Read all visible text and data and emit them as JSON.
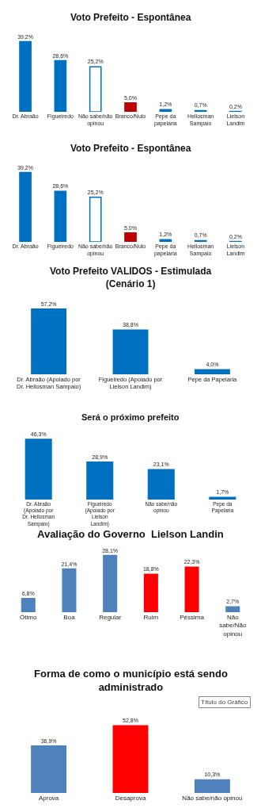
{
  "chart_data": [
    {
      "type": "bar",
      "title": "Voto Prefeito - Espontânea",
      "categories": [
        "Dr. Abraão",
        "Figueiredo",
        "Não sabe/não opinou",
        "Branco/Nulo",
        "Pepe da papelaria",
        "Hellosman Sampaio",
        "Lielson Landim"
      ],
      "values": [
        39.2,
        28.6,
        25.2,
        5.0,
        1.2,
        0.7,
        0.2
      ],
      "value_labels": [
        "39,2%",
        "28,6%",
        "25,2%",
        "5,0%",
        "1,2%",
        "0,7%",
        "0,2%"
      ],
      "colors": [
        "#0070c0",
        "#0070c0",
        "#ffffff",
        "#c00000",
        "#0070c0",
        "#0070c0",
        "#0070c0"
      ]
    },
    {
      "type": "bar",
      "title": "Voto Prefeito - Espontânea",
      "categories": [
        "Dr. Abraão",
        "Figueiredo",
        "Não sabe/não opinou",
        "Branco/Nulo",
        "Pepe da papelaria",
        "Hellosman Sampaio",
        "Lielson Landim"
      ],
      "values": [
        39.2,
        28.6,
        25.2,
        5.0,
        1.2,
        0.7,
        0.2
      ],
      "value_labels": [
        "39,2%",
        "28,6%",
        "25,2%",
        "5,0%",
        "1,2%",
        "0,7%",
        "0,2%"
      ],
      "colors": [
        "#0070c0",
        "#0070c0",
        "#ffffff",
        "#c00000",
        "#0070c0",
        "#0070c0",
        "#0070c0"
      ]
    },
    {
      "type": "bar",
      "title": "Voto Prefeito VALIDOS - Estimulada (Cenário 1)",
      "categories": [
        "Dr. Abraão (Apoiado por Dr. Hellosman Sampaio)",
        "Figueiredo (Apoiado por Lielson Landim)",
        "Pepe da Papelaria"
      ],
      "values": [
        57.2,
        38.8,
        4.0
      ],
      "value_labels": [
        "57,2%",
        "38,8%",
        "4,0%"
      ],
      "color": "#0070c0"
    },
    {
      "type": "bar",
      "title": "Será o próximo prefeito",
      "categories": [
        "Dr. Abraão (Apoiado por Dr. Hellosman Sampaio)",
        "Figueiredo (Apoiado por Lielson Landim)",
        "Não sabe/não opinou",
        "Pepe da Papelaria"
      ],
      "values": [
        46.3,
        28.9,
        23.1,
        1.7
      ],
      "value_labels": [
        "46,3%",
        "28,9%",
        "23,1%",
        "1,7%"
      ],
      "color": "#0070c0"
    },
    {
      "type": "bar",
      "title": "Avaliação do Governo  Lielson Landin",
      "categories": [
        "Ótimo",
        "Boa",
        "Regular",
        "Ruim",
        "Péssima",
        "Não sabe/Não opinou"
      ],
      "values": [
        6.8,
        21.4,
        28.1,
        18.8,
        22.3,
        2.7
      ],
      "value_labels": [
        "6,8%",
        "21,4%",
        "28,1%",
        "18,8%",
        "22,3%",
        "2,7%"
      ],
      "colors": [
        "#4f81bd",
        "#4f81bd",
        "#4f81bd",
        "#ff0000",
        "#ff0000",
        "#4f81bd"
      ]
    },
    {
      "type": "bar",
      "title": "Forma de como o município está sendo administrado",
      "categories": [
        "Aprova",
        "Desaprova",
        "Não sabe/não opinou"
      ],
      "values": [
        36.9,
        52.8,
        10.3
      ],
      "value_labels": [
        "36,9%",
        "52,8%",
        "10,3%"
      ],
      "colors": [
        "#4f81bd",
        "#ff0000",
        "#4f81bd"
      ],
      "annotations": [
        "Título do Gráfico"
      ]
    }
  ]
}
